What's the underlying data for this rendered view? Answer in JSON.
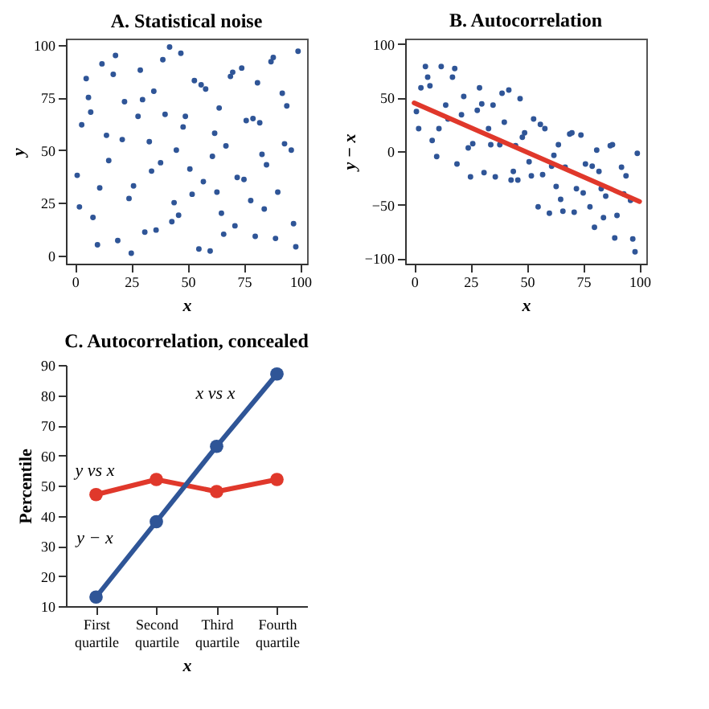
{
  "chart_data": [
    {
      "type": "scatter",
      "title": "A. Statistical noise",
      "xlabel": "x",
      "ylabel": "y",
      "color": "#2f5597",
      "marker": "circle",
      "grid": false,
      "xlim": [
        -4,
        103
      ],
      "ylim": [
        -4,
        103
      ],
      "xticks": [
        0,
        25,
        50,
        75,
        100
      ],
      "yticks": [
        0,
        25,
        50,
        75,
        100
      ],
      "x": [
        3,
        8,
        12,
        15,
        19,
        22,
        26,
        29,
        33,
        36,
        40,
        44,
        47,
        51,
        55,
        58,
        62,
        65,
        69,
        72,
        76,
        80,
        83,
        87,
        90,
        94,
        97,
        1,
        5,
        10,
        14,
        18,
        24,
        28,
        31,
        35,
        38,
        42,
        46,
        49,
        53,
        57,
        60,
        64,
        67,
        71,
        74,
        78,
        82,
        85,
        89,
        92,
        96,
        99,
        2,
        7,
        11,
        17,
        21,
        25,
        30,
        34,
        39,
        43,
        48,
        52,
        56,
        61,
        66,
        70,
        75,
        79,
        84,
        88,
        93,
        98,
        6,
        45,
        63,
        81
      ],
      "values": [
        62,
        18,
        91,
        45,
        7,
        73,
        33,
        88,
        54,
        12,
        67,
        25,
        96,
        41,
        3,
        79,
        58,
        20,
        85,
        37,
        64,
        9,
        48,
        92,
        30,
        71,
        15,
        38,
        84,
        5,
        57,
        95,
        27,
        66,
        11,
        78,
        44,
        99,
        19,
        66,
        83,
        35,
        2,
        70,
        52,
        14,
        89,
        26,
        63,
        43,
        8,
        77,
        50,
        97,
        23,
        68,
        32,
        86,
        55,
        1,
        74,
        40,
        93,
        16,
        61,
        29,
        81,
        47,
        10,
        87,
        36,
        65,
        22,
        94,
        53,
        4,
        75,
        50,
        30,
        82
      ]
    },
    {
      "type": "scatter",
      "title": "B. Autocorrelation",
      "xlabel": "x",
      "ylabel": "y − x",
      "grid": false,
      "xlim": [
        -4,
        103
      ],
      "ylim": [
        -105,
        105
      ],
      "xticks": [
        0,
        25,
        50,
        75,
        100
      ],
      "yticks": [
        -100,
        -50,
        0,
        50,
        100
      ],
      "series": [
        {
          "type": "scatter",
          "marker": "circle",
          "color": "#2f5597",
          "x": [
            3,
            8,
            12,
            15,
            19,
            22,
            26,
            29,
            33,
            36,
            40,
            44,
            47,
            51,
            55,
            58,
            62,
            65,
            69,
            72,
            76,
            80,
            83,
            87,
            90,
            94,
            97,
            1,
            5,
            10,
            14,
            18,
            24,
            28,
            31,
            35,
            38,
            42,
            46,
            49,
            53,
            57,
            60,
            64,
            67,
            71,
            74,
            78,
            82,
            85,
            89,
            92,
            96,
            99,
            2,
            7,
            11,
            17,
            21,
            25,
            30,
            34,
            39,
            43,
            48,
            52,
            56,
            61,
            66,
            70,
            75,
            79,
            84,
            88,
            93,
            98,
            6,
            45,
            63,
            81
          ],
          "values": [
            59,
            10,
            79,
            30,
            -12,
            51,
            7,
            59,
            21,
            -24,
            27,
            -19,
            49,
            -10,
            -52,
            21,
            -4,
            -45,
            16,
            -35,
            -12,
            -71,
            -35,
            5,
            -60,
            -23,
            -82,
            37,
            79,
            -5,
            43,
            77,
            3,
            38,
            -20,
            43,
            6,
            57,
            -27,
            17,
            30,
            -22,
            -58,
            6,
            -15,
            -57,
            15,
            -52,
            -19,
            -42,
            -81,
            -15,
            -46,
            -2,
            21,
            61,
            21,
            69,
            34,
            -24,
            44,
            6,
            54,
            -27,
            13,
            -23,
            25,
            -14,
            -56,
            17,
            -39,
            -14,
            -62,
            6,
            -40,
            -94,
            69,
            5,
            -33,
            1
          ]
        },
        {
          "type": "line",
          "color": "#e0382b",
          "x": [
            0,
            100
          ],
          "values": [
            45,
            -47
          ]
        }
      ]
    },
    {
      "type": "line",
      "title": "C. Autocorrelation, concealed",
      "xlabel": "x",
      "ylabel": "Percentile",
      "marker": "circle",
      "grid": false,
      "ylim": [
        10,
        90
      ],
      "yticks": [
        10,
        20,
        30,
        40,
        50,
        60,
        70,
        80,
        90
      ],
      "categories": [
        "First quartile",
        "Second quartile",
        "Third quartile",
        "Fourth quartile"
      ],
      "series": [
        {
          "color": "#e0382b",
          "values": [
            47,
            52,
            48,
            52
          ]
        },
        {
          "color": "#2f5597",
          "values": [
            13,
            38,
            63,
            87
          ]
        }
      ],
      "annotations": [
        "x vs x",
        "y vs x",
        "y − x"
      ]
    }
  ]
}
